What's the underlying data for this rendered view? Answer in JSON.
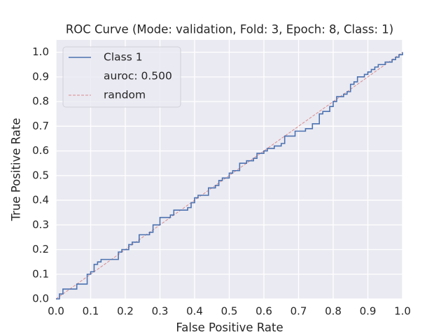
{
  "chart_data": {
    "type": "line",
    "title": "ROC Curve (Mode: validation, Fold: 3, Epoch: 8, Class: 1)",
    "xlabel": "False Positive Rate",
    "ylabel": "True Positive Rate",
    "xlim": [
      0,
      1
    ],
    "ylim": [
      0,
      1.05
    ],
    "xticks": [
      {
        "value": 0,
        "label": "0.0"
      },
      0.1,
      0.2,
      0.3,
      0.4,
      0.5,
      0.6,
      0.7,
      0.8,
      0.9,
      {
        "value": 1,
        "label": "1.0"
      }
    ],
    "yticks": [
      {
        "value": 0,
        "label": "0.0"
      },
      0.1,
      0.2,
      0.3,
      0.4,
      0.5,
      0.6,
      0.7,
      0.8,
      0.9,
      {
        "value": 1,
        "label": "1.0"
      }
    ],
    "grid": true,
    "legend": "upper left",
    "legend_note": "auroc: 0.500",
    "series": [
      {
        "name": "Class 1",
        "color": "#4c72b0",
        "dash": false,
        "x": [
          0,
          0.01,
          0.01,
          0.02,
          0.02,
          0.06,
          0.06,
          0.09,
          0.09,
          0.1,
          0.1,
          0.11,
          0.11,
          0.12,
          0.12,
          0.13,
          0.13,
          0.18,
          0.18,
          0.19,
          0.19,
          0.21,
          0.21,
          0.22,
          0.22,
          0.24,
          0.24,
          0.27,
          0.27,
          0.28,
          0.28,
          0.3,
          0.3,
          0.33,
          0.33,
          0.34,
          0.34,
          0.38,
          0.38,
          0.39,
          0.39,
          0.4,
          0.4,
          0.41,
          0.41,
          0.44,
          0.44,
          0.46,
          0.46,
          0.47,
          0.47,
          0.48,
          0.48,
          0.5,
          0.5,
          0.51,
          0.51,
          0.53,
          0.53,
          0.55,
          0.55,
          0.57,
          0.57,
          0.58,
          0.58,
          0.6,
          0.6,
          0.61,
          0.61,
          0.63,
          0.63,
          0.65,
          0.65,
          0.66,
          0.66,
          0.69,
          0.69,
          0.72,
          0.72,
          0.74,
          0.74,
          0.76,
          0.76,
          0.77,
          0.77,
          0.79,
          0.79,
          0.8,
          0.8,
          0.81,
          0.81,
          0.83,
          0.83,
          0.84,
          0.84,
          0.85,
          0.85,
          0.86,
          0.86,
          0.87,
          0.87,
          0.89,
          0.89,
          0.9,
          0.9,
          0.91,
          0.91,
          0.92,
          0.92,
          0.93,
          0.93,
          0.95,
          0.95,
          0.97,
          0.97,
          0.98,
          0.98,
          0.99,
          0.99,
          1,
          1
        ],
        "values": [
          0,
          0,
          0.02,
          0.02,
          0.04,
          0.04,
          0.06,
          0.06,
          0.1,
          0.1,
          0.11,
          0.11,
          0.14,
          0.14,
          0.15,
          0.15,
          0.16,
          0.16,
          0.19,
          0.19,
          0.2,
          0.2,
          0.22,
          0.22,
          0.23,
          0.23,
          0.26,
          0.26,
          0.27,
          0.27,
          0.3,
          0.3,
          0.33,
          0.33,
          0.34,
          0.34,
          0.36,
          0.36,
          0.37,
          0.37,
          0.39,
          0.39,
          0.41,
          0.41,
          0.42,
          0.42,
          0.45,
          0.45,
          0.46,
          0.46,
          0.48,
          0.48,
          0.49,
          0.49,
          0.51,
          0.51,
          0.52,
          0.52,
          0.55,
          0.55,
          0.56,
          0.56,
          0.57,
          0.57,
          0.59,
          0.59,
          0.6,
          0.6,
          0.61,
          0.61,
          0.62,
          0.62,
          0.63,
          0.63,
          0.66,
          0.66,
          0.68,
          0.68,
          0.69,
          0.69,
          0.71,
          0.71,
          0.75,
          0.75,
          0.76,
          0.76,
          0.78,
          0.78,
          0.8,
          0.8,
          0.82,
          0.82,
          0.83,
          0.83,
          0.84,
          0.84,
          0.87,
          0.87,
          0.88,
          0.88,
          0.9,
          0.9,
          0.91,
          0.91,
          0.92,
          0.92,
          0.93,
          0.93,
          0.94,
          0.94,
          0.95,
          0.95,
          0.96,
          0.96,
          0.97,
          0.97,
          0.98,
          0.98,
          0.99,
          0.99,
          1
        ]
      },
      {
        "name": "random",
        "color": "#d98a8c",
        "dash": true,
        "x": [
          0,
          1
        ],
        "values": [
          0,
          1
        ]
      }
    ]
  }
}
